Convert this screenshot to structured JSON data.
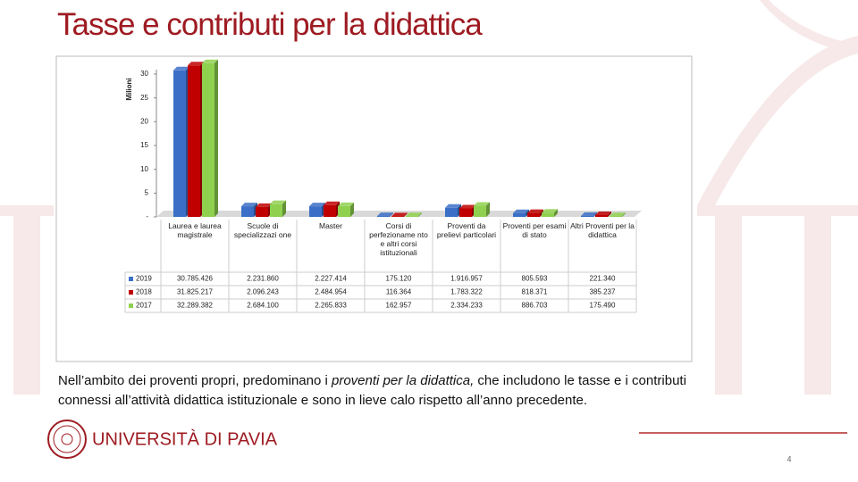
{
  "header": {
    "title": "Tasse e contributi per la didattica"
  },
  "chart_data": {
    "type": "bar",
    "y_label": "Milioni",
    "categories": [
      "Laurea e laurea magistrale",
      "Scuole di specializzazi one",
      "Master",
      "Corsi di perfezioname nto e altri corsi istituzionali",
      "Proventi da prelievi particolari",
      "Proventi per esami di stato",
      "Altri Proventi per la didattica"
    ],
    "series": [
      {
        "name": "2019",
        "color": "#3b6fc7",
        "values": [
          30.785426,
          2.23186,
          2.227414,
          0.17512,
          1.916957,
          0.805593,
          0.22134
        ],
        "value_labels": [
          "30.785.426",
          "2.231.860",
          "2.227.414",
          "175.120",
          "1.916.957",
          "805.593",
          "221.340"
        ]
      },
      {
        "name": "2018",
        "color": "#c00000",
        "values": [
          31.825217,
          2.096243,
          2.484954,
          0.116364,
          1.783322,
          0.818371,
          0.385237
        ],
        "value_labels": [
          "31.825.217",
          "2.096.243",
          "2.484.954",
          "116.364",
          "1.783.322",
          "818.371",
          "385.237"
        ]
      },
      {
        "name": "2017",
        "color": "#8fd14f",
        "values": [
          32.289382,
          2.6841,
          2.265833,
          0.162957,
          2.334233,
          0.886703,
          0.17549
        ],
        "value_labels": [
          "32.289.382",
          "2.684.100",
          "2.265.833",
          "162.957",
          "2.334.233",
          "886.703",
          "175.490"
        ]
      }
    ],
    "ylim": [
      0,
      32
    ],
    "yticks": [
      {
        "value": 0,
        "label": "-"
      },
      5,
      10,
      15,
      20,
      25,
      30
    ],
    "grid": false
  },
  "text": {
    "parts": [
      "Nell’ambito dei proventi propri, predominano i ",
      "proventi per la didattica,",
      " che includono le tasse e i contributi connessi all’attività didattica istituzionale e sono in lieve calo rispetto all’anno precedente."
    ]
  },
  "logo": {
    "text": "UNIVERSITÀ DI PAVIA"
  },
  "page_number": "4"
}
